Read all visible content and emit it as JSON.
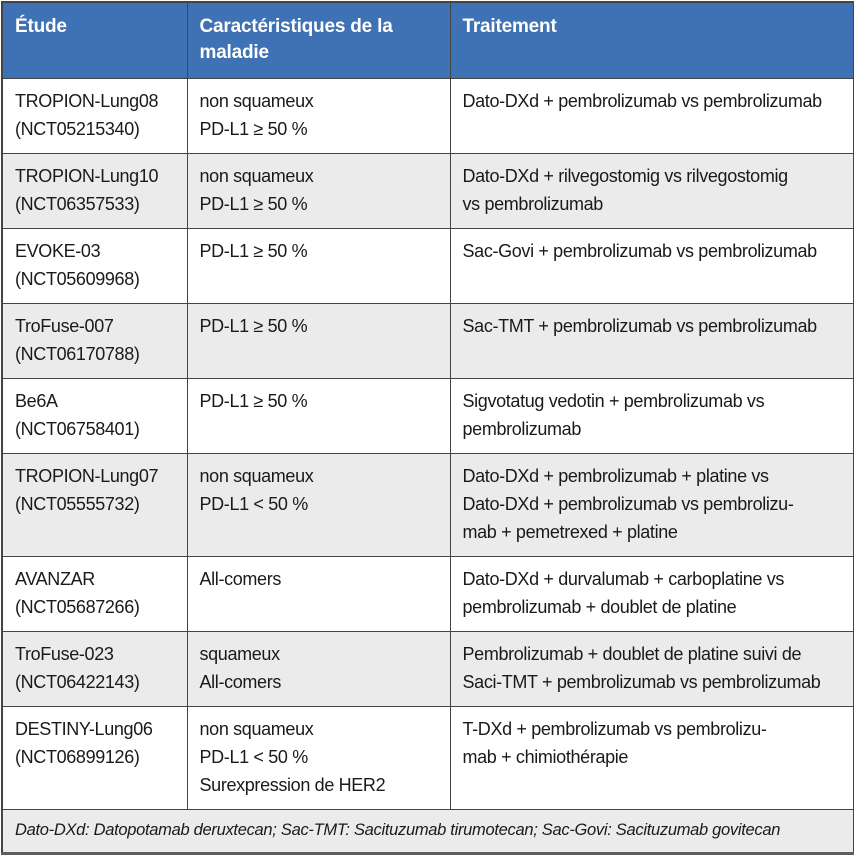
{
  "colors": {
    "header_bg": "#3f72b4",
    "header_text": "#ffffff",
    "row_alt_bg": "#ebebeb",
    "border": "#444444"
  },
  "table": {
    "columns": [
      "Étude",
      "Caractéristiques de la maladie",
      "Traitement"
    ],
    "rows": [
      {
        "study": "TROPION-Lung08\n(NCT05215340)",
        "disease": "non squameux\nPD-L1 ≥ 50 %",
        "treatment": "Dato-DXd + pembrolizumab vs pembrolizumab"
      },
      {
        "study": "TROPION-Lung10\n(NCT06357533)",
        "disease": "non squameux\nPD-L1 ≥ 50 %",
        "treatment": "Dato-DXd + rilvegostomig vs rilvegostomig\nvs pembrolizumab"
      },
      {
        "study": "EVOKE-03\n(NCT05609968)",
        "disease": "PD-L1 ≥ 50 %",
        "treatment": "Sac-Govi + pembrolizumab vs pembrolizumab"
      },
      {
        "study": "TroFuse-007\n(NCT06170788)",
        "disease": "PD-L1 ≥ 50 %",
        "treatment": "Sac-TMT + pembrolizumab vs pembrolizumab"
      },
      {
        "study": "Be6A\n(NCT06758401)",
        "disease": "PD-L1 ≥ 50 %",
        "treatment": "Sigvotatug vedotin + pembrolizumab vs\npembrolizumab"
      },
      {
        "study": "TROPION-Lung07\n(NCT05555732)",
        "disease": "non squameux\nPD-L1 < 50 %",
        "treatment": "Dato-DXd + pembrolizumab + platine vs\nDato-DXd + pembrolizumab vs pembrolizu-\nmab + pemetrexed + platine"
      },
      {
        "study": "AVANZAR\n(NCT05687266)",
        "disease": "All-comers",
        "treatment": "Dato-DXd + durvalumab + carboplatine vs\npembrolizumab + doublet de platine"
      },
      {
        "study": "TroFuse-023\n(NCT06422143)",
        "disease": "squameux\nAll-comers",
        "treatment": "Pembrolizumab + doublet de platine suivi de\nSaci-TMT + pembrolizumab vs pembrolizumab"
      },
      {
        "study": "DESTINY-Lung06\n(NCT06899126)",
        "disease": "non squameux\nPD-L1 < 50 %\nSurexpression de HER2",
        "treatment": "T-DXd + pembrolizumab vs pembrolizu-\nmab + chimiothérapie"
      }
    ],
    "footnote": "Dato-DXd: Datopotamab deruxtecan; Sac-TMT: Sacituzumab tirumotecan; Sac-Govi: Sacituzumab govitecan"
  }
}
